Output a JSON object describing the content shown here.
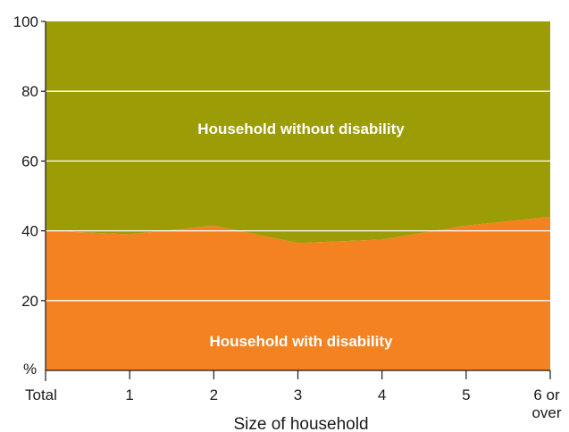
{
  "chart_data": {
    "type": "area",
    "stacked": true,
    "percent": true,
    "categories": [
      "Total",
      "1",
      "2",
      "3",
      "4",
      "5",
      "6 or over"
    ],
    "category_lines": [
      [
        "Total"
      ],
      [
        "1"
      ],
      [
        "2"
      ],
      [
        "3"
      ],
      [
        "4"
      ],
      [
        "5"
      ],
      [
        "6 or",
        "over"
      ]
    ],
    "series": [
      {
        "name": "Household with disability",
        "values": [
          40,
          39,
          41.5,
          36.5,
          37.5,
          41.5,
          44
        ],
        "color": "#f58220"
      },
      {
        "name": "Household without disability",
        "values": [
          60,
          61,
          58.5,
          63.5,
          62.5,
          58.5,
          56
        ],
        "color": "#9c9c06"
      }
    ],
    "xlabel": "Size of household",
    "ylabel_unit": "%",
    "ylim": [
      0,
      100
    ],
    "yticks": [
      20,
      40,
      60,
      80,
      100
    ],
    "grid": true
  }
}
